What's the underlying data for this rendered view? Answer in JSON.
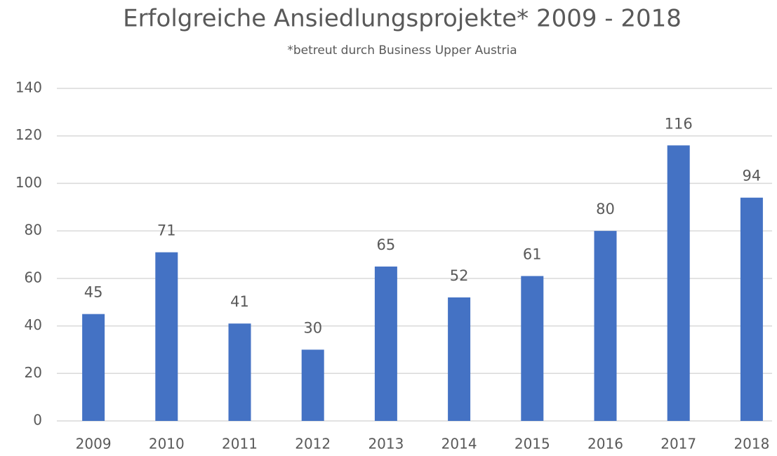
{
  "chart_data": {
    "type": "bar",
    "title": "Erfolgreiche Ansiedlungsprojekte* 2009 - 2018",
    "subtitle": "*betreut durch Business Upper Austria",
    "categories": [
      "2009",
      "2010",
      "2011",
      "2012",
      "2013",
      "2014",
      "2015",
      "2016",
      "2017",
      "2018"
    ],
    "values": [
      45,
      71,
      41,
      30,
      65,
      52,
      61,
      80,
      116,
      94
    ],
    "color": "#4472c4",
    "ylim": [
      0,
      140
    ],
    "yticks": [
      0,
      20,
      40,
      60,
      80,
      100,
      120,
      140
    ],
    "grid": true
  }
}
